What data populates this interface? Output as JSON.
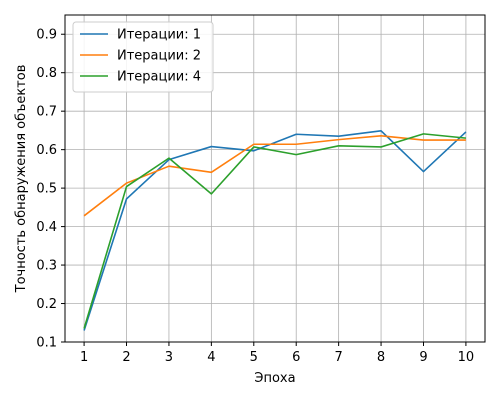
{
  "chart_data": {
    "type": "line",
    "title": "",
    "xlabel": "Эпоха",
    "ylabel": "Точность обнаружения объектов",
    "x": [
      1,
      2,
      3,
      4,
      5,
      6,
      7,
      8,
      9,
      10
    ],
    "xlim": [
      0.55,
      10.45
    ],
    "ylim": [
      0.1,
      0.95
    ],
    "yticks": [
      0.1,
      0.2,
      0.3,
      0.4,
      0.5,
      0.6,
      0.7,
      0.8,
      0.9
    ],
    "ytick_labels": [
      "0.1",
      "0.2",
      "0.3",
      "0.4",
      "0.5",
      "0.6",
      "0.7",
      "0.8",
      "0.9"
    ],
    "xtick_labels": [
      "1",
      "2",
      "3",
      "4",
      "5",
      "6",
      "7",
      "8",
      "9",
      "10"
    ],
    "grid": true,
    "legend_position": "top-left",
    "series": [
      {
        "name": "Итерации: 1",
        "color": "#1f77b4",
        "values": [
          0.13,
          0.472,
          0.574,
          0.608,
          0.597,
          0.64,
          0.635,
          0.649,
          0.543,
          0.646
        ]
      },
      {
        "name": "Итерации: 2",
        "color": "#ff7f0e",
        "values": [
          0.428,
          0.513,
          0.557,
          0.541,
          0.614,
          0.614,
          0.626,
          0.636,
          0.625,
          0.625
        ]
      },
      {
        "name": "Итерации: 4",
        "color": "#2ca02c",
        "values": [
          0.135,
          0.504,
          0.578,
          0.485,
          0.607,
          0.587,
          0.61,
          0.607,
          0.641,
          0.63
        ]
      }
    ]
  }
}
